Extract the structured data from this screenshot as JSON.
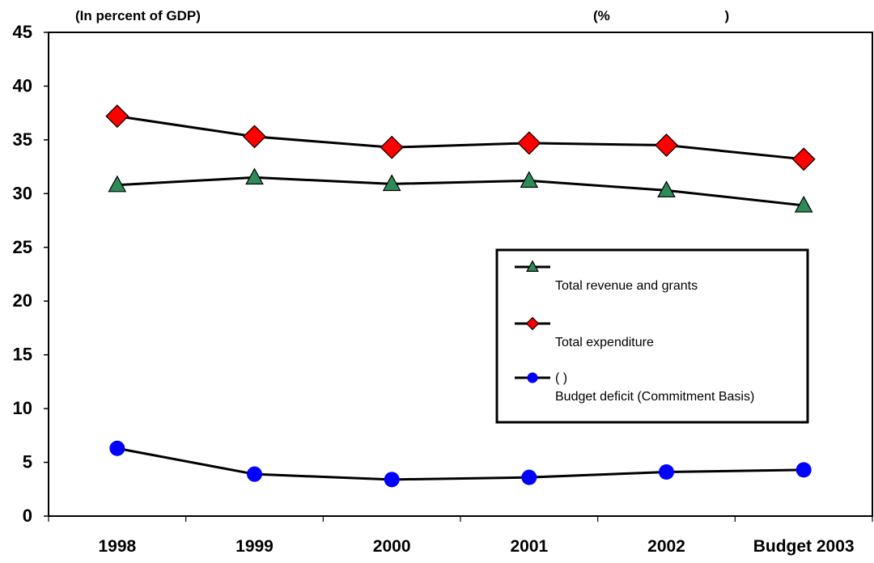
{
  "chart_data": {
    "type": "line",
    "title": "(In percent of GDP)",
    "title_secondary": "(%                              )",
    "categories": [
      "1998",
      "1999",
      "2000",
      "2001",
      "2002",
      "Budget 2003"
    ],
    "ylim": [
      0,
      45
    ],
    "yticks": [
      0,
      5,
      10,
      15,
      20,
      25,
      30,
      35,
      40,
      45
    ],
    "grid": false,
    "legend_position": "right-center",
    "series": [
      {
        "name": "Total revenue and grants",
        "legend_lines": [
          "",
          "Total revenue and grants"
        ],
        "values": [
          30.8,
          31.5,
          30.9,
          31.2,
          30.3,
          28.9
        ],
        "marker": "triangle",
        "color": "#2e8b57"
      },
      {
        "name": "Total expenditure",
        "legend_lines": [
          "",
          "Total expenditure"
        ],
        "values": [
          37.2,
          35.3,
          34.3,
          34.7,
          34.5,
          33.2
        ],
        "marker": "diamond",
        "color": "#ff0000"
      },
      {
        "name": "Budget deficit (Commitment Basis)",
        "legend_lines": [
          "(                          )",
          "Budget deficit (Commitment Basis)"
        ],
        "values": [
          6.3,
          3.9,
          3.4,
          3.6,
          4.1,
          4.3
        ],
        "marker": "circle",
        "color": "#0000ff"
      }
    ]
  }
}
